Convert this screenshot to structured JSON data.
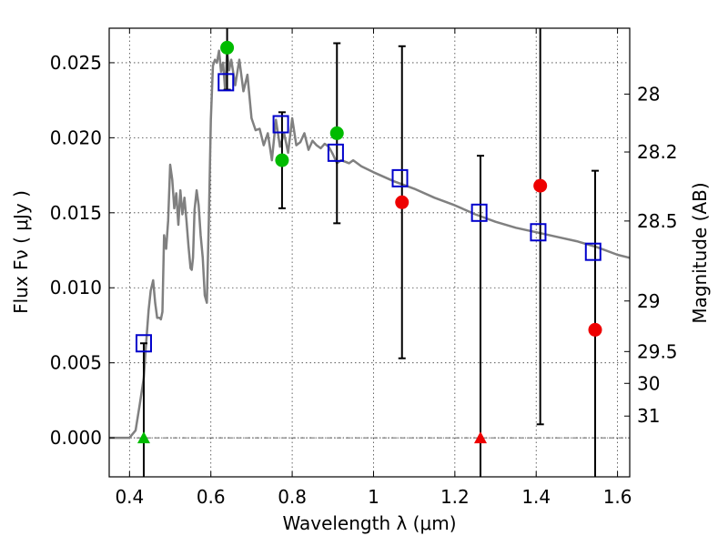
{
  "chart_data": {
    "type": "scatter",
    "xlabel": "Wavelength  λ (μm)",
    "ylabel": "Flux  Fν  ( μJy )",
    "y2label": "Magnitude (AB)",
    "xlim": [
      0.35,
      1.63
    ],
    "ylim": [
      -0.0026,
      0.0273
    ],
    "grid": true,
    "x_ticks": [
      {
        "value": 0.4,
        "label": "0.4"
      },
      {
        "value": 0.6,
        "label": "0.6"
      },
      {
        "value": 0.8,
        "label": "0.8"
      },
      {
        "value": 1.0,
        "label": "1"
      },
      {
        "value": 1.2,
        "label": "1.2"
      },
      {
        "value": 1.4,
        "label": "1.4"
      },
      {
        "value": 1.6,
        "label": "1.6"
      }
    ],
    "y_ticks": [
      {
        "value": 0.0,
        "label": "0.000"
      },
      {
        "value": 0.005,
        "label": "0.005"
      },
      {
        "value": 0.01,
        "label": "0.010"
      },
      {
        "value": 0.015,
        "label": "0.015"
      },
      {
        "value": 0.02,
        "label": "0.020"
      },
      {
        "value": 0.025,
        "label": "0.025"
      }
    ],
    "y2_ticks": [
      {
        "label": "28",
        "flux": 0.02291
      },
      {
        "label": "28.2",
        "flux": 0.01905
      },
      {
        "label": "28.5",
        "flux": 0.01445
      },
      {
        "label": "29",
        "flux": 0.00912
      },
      {
        "label": "29.5",
        "flux": 0.00575
      },
      {
        "label": "30",
        "flux": 0.00363
      },
      {
        "label": "31",
        "flux": 0.00145
      }
    ],
    "model_sed": {
      "color": "#808080",
      "x": [
        0.35,
        0.4,
        0.415,
        0.425,
        0.435,
        0.44,
        0.447,
        0.452,
        0.458,
        0.463,
        0.468,
        0.474,
        0.477,
        0.481,
        0.485,
        0.49,
        0.495,
        0.5,
        0.505,
        0.51,
        0.515,
        0.52,
        0.525,
        0.53,
        0.535,
        0.54,
        0.545,
        0.55,
        0.553,
        0.556,
        0.56,
        0.565,
        0.57,
        0.575,
        0.58,
        0.585,
        0.59,
        0.595,
        0.6,
        0.605,
        0.61,
        0.615,
        0.62,
        0.625,
        0.63,
        0.635,
        0.64,
        0.645,
        0.65,
        0.66,
        0.67,
        0.68,
        0.69,
        0.7,
        0.71,
        0.72,
        0.73,
        0.74,
        0.75,
        0.76,
        0.77,
        0.78,
        0.79,
        0.8,
        0.81,
        0.82,
        0.83,
        0.84,
        0.85,
        0.86,
        0.87,
        0.88,
        0.89,
        0.9,
        0.91,
        0.92,
        0.93,
        0.94,
        0.95,
        0.97,
        1.0,
        1.05,
        1.1,
        1.15,
        1.2,
        1.25,
        1.3,
        1.35,
        1.4,
        1.45,
        1.5,
        1.55,
        1.6,
        1.63
      ],
      "y": [
        0.0,
        0.0,
        0.0005,
        0.0022,
        0.004,
        0.006,
        0.0085,
        0.0098,
        0.0105,
        0.009,
        0.008,
        0.008,
        0.0079,
        0.0084,
        0.0135,
        0.0126,
        0.0145,
        0.0182,
        0.0172,
        0.0153,
        0.0163,
        0.0142,
        0.0165,
        0.0149,
        0.016,
        0.0145,
        0.0128,
        0.0113,
        0.0112,
        0.012,
        0.0152,
        0.0165,
        0.0155,
        0.0135,
        0.012,
        0.0095,
        0.009,
        0.0145,
        0.0212,
        0.0248,
        0.0252,
        0.025,
        0.0258,
        0.0244,
        0.025,
        0.0232,
        0.0258,
        0.0245,
        0.0252,
        0.0235,
        0.0252,
        0.0231,
        0.0242,
        0.0213,
        0.0205,
        0.0206,
        0.0195,
        0.0203,
        0.0185,
        0.0212,
        0.0194,
        0.0203,
        0.019,
        0.0213,
        0.0195,
        0.0197,
        0.0203,
        0.0192,
        0.0198,
        0.0195,
        0.0193,
        0.0196,
        0.0194,
        0.0189,
        0.0183,
        0.0185,
        0.0184,
        0.0183,
        0.0185,
        0.0181,
        0.0177,
        0.0171,
        0.0166,
        0.016,
        0.0155,
        0.0149,
        0.0144,
        0.014,
        0.0137,
        0.0134,
        0.0131,
        0.0127,
        0.0122,
        0.012
      ]
    },
    "model_photometry": {
      "color": "#0000cc",
      "x": [
        0.435,
        0.637,
        0.772,
        0.907,
        1.065,
        1.26,
        1.405,
        1.54
      ],
      "y": [
        0.0063,
        0.0237,
        0.0209,
        0.019,
        0.0173,
        0.015,
        0.0137,
        0.0124
      ]
    },
    "observations": [
      {
        "x": 0.435,
        "y": 0.0,
        "err": 0.0063,
        "color": "#00bb00",
        "marker": "triangle"
      },
      {
        "x": 0.64,
        "y": 0.026,
        "err": 0.0028,
        "color": "#00bb00",
        "marker": "circle"
      },
      {
        "x": 0.775,
        "y": 0.0185,
        "err": 0.0032,
        "color": "#00bb00",
        "marker": "circle"
      },
      {
        "x": 0.91,
        "y": 0.0203,
        "err": 0.006,
        "color": "#00bb00",
        "marker": "circle"
      },
      {
        "x": 1.07,
        "y": 0.0157,
        "err": 0.0104,
        "color": "#ee0000",
        "marker": "circle"
      },
      {
        "x": 1.263,
        "y": 0.0,
        "err": 0.0188,
        "color": "#ee0000",
        "marker": "triangle"
      },
      {
        "x": 1.41,
        "y": 0.0168,
        "err": 0.0159,
        "color": "#ee0000",
        "marker": "circle"
      },
      {
        "x": 1.545,
        "y": 0.0072,
        "err": 0.0106,
        "color": "#ee0000",
        "marker": "circle"
      }
    ]
  }
}
